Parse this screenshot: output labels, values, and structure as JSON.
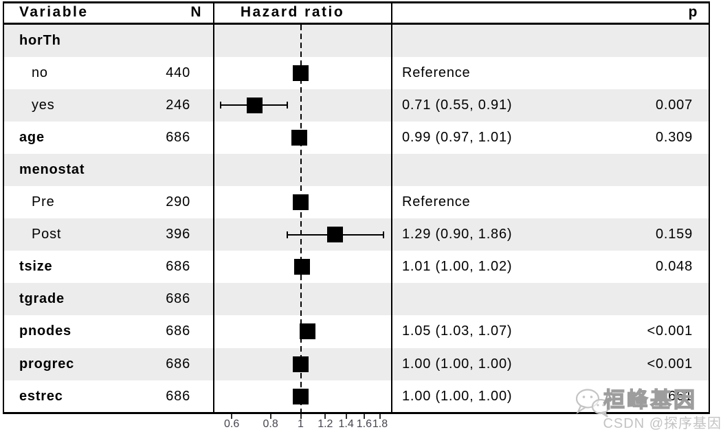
{
  "header": {
    "variable": "Variable",
    "n": "N",
    "hazard_ratio": "Hazard ratio",
    "p": "p"
  },
  "watermark": {
    "icon": "wechat-icon",
    "brand": "桓峰基因",
    "credit": "CSDN @探序基因"
  },
  "colors": {
    "row_shade": "#ececec",
    "marker": "#000000",
    "border": "#000000",
    "axis_text": "#45454e",
    "watermark_gray": "#c3c3c3"
  },
  "chart_data": {
    "type": "forest",
    "x_scale": "log",
    "reference_line": 1,
    "axis_tick_labels": [
      "0.6",
      "0.8",
      "1",
      "1.2",
      "1.4",
      "1.6",
      "1.8"
    ],
    "axis_tick_values": [
      0.6,
      0.8,
      1,
      1.2,
      1.4,
      1.6,
      1.8
    ],
    "rows": [
      {
        "label": "horTh",
        "group": true,
        "shaded": true,
        "n": "",
        "hr": null,
        "ci_low": null,
        "ci_high": null,
        "estimate": "",
        "p": ""
      },
      {
        "label": "no",
        "group": false,
        "shaded": false,
        "n": "440",
        "hr": 1.0,
        "ci_low": null,
        "ci_high": null,
        "estimate": "Reference",
        "p": ""
      },
      {
        "label": "yes",
        "group": false,
        "shaded": true,
        "n": "246",
        "hr": 0.71,
        "ci_low": 0.55,
        "ci_high": 0.91,
        "estimate": "0.71 (0.55, 0.91)",
        "p": "0.007"
      },
      {
        "label": "age",
        "group": true,
        "shaded": false,
        "n": "686",
        "hr": 0.99,
        "ci_low": 0.97,
        "ci_high": 1.01,
        "estimate": "0.99 (0.97, 1.01)",
        "p": "0.309"
      },
      {
        "label": "menostat",
        "group": true,
        "shaded": true,
        "n": "",
        "hr": null,
        "ci_low": null,
        "ci_high": null,
        "estimate": "",
        "p": ""
      },
      {
        "label": "Pre",
        "group": false,
        "shaded": false,
        "n": "290",
        "hr": 1.0,
        "ci_low": null,
        "ci_high": null,
        "estimate": "Reference",
        "p": ""
      },
      {
        "label": "Post",
        "group": false,
        "shaded": true,
        "n": "396",
        "hr": 1.29,
        "ci_low": 0.9,
        "ci_high": 1.86,
        "estimate": "1.29 (0.90, 1.86)",
        "p": "0.159"
      },
      {
        "label": "tsize",
        "group": true,
        "shaded": false,
        "n": "686",
        "hr": 1.01,
        "ci_low": 1.0,
        "ci_high": 1.02,
        "estimate": "1.01 (1.00, 1.02)",
        "p": "0.048"
      },
      {
        "label": "tgrade",
        "group": true,
        "shaded": true,
        "n": "686",
        "hr": null,
        "ci_low": null,
        "ci_high": null,
        "estimate": "",
        "p": ""
      },
      {
        "label": "pnodes",
        "group": true,
        "shaded": false,
        "n": "686",
        "hr": 1.05,
        "ci_low": 1.03,
        "ci_high": 1.07,
        "estimate": "1.05 (1.03, 1.07)",
        "p": "<0.001"
      },
      {
        "label": "progrec",
        "group": true,
        "shaded": true,
        "n": "686",
        "hr": 1.0,
        "ci_low": 1.0,
        "ci_high": 1.0,
        "estimate": "1.00 (1.00, 1.00)",
        "p": "<0.001"
      },
      {
        "label": "estrec",
        "group": true,
        "shaded": false,
        "n": "686",
        "hr": 1.0,
        "ci_low": 1.0,
        "ci_high": 1.0,
        "estimate": "1.00 (1.00, 1.00)",
        "p": "0.661"
      }
    ]
  }
}
